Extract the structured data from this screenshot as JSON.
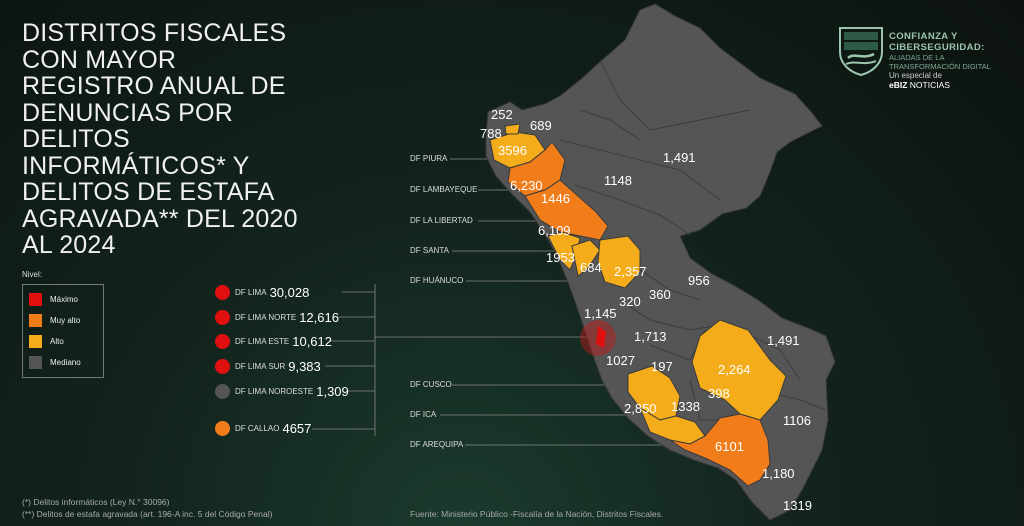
{
  "title": "DISTRITOS FISCALES CON MAYOR REGISTRO ANUAL DE DENUNCIAS POR DELITOS INFORMÁTICOS* Y DELITOS DE ESTAFA AGRAVADA** DEL 2020 AL 2024",
  "legend": {
    "title": "Nivel:",
    "items": [
      {
        "label": "Máximo",
        "color": "#e01010"
      },
      {
        "label": "Muy alto",
        "color": "#f07d1a"
      },
      {
        "label": "Alto",
        "color": "#f5ac1a"
      },
      {
        "label": "Mediano",
        "color": "#555555"
      }
    ]
  },
  "district_labels": [
    "DF PIURA",
    "DF LAMBAYEQUE",
    "DF  LA LIBERTAD",
    "DF SANTA",
    "DF  HUÁNUCO",
    "DF CUSCO",
    "DF ICA",
    "DF AREQUIPA"
  ],
  "lima": [
    {
      "name": "DF LIMA",
      "value": "30,028",
      "color": "#e01010"
    },
    {
      "name": "DF LIMA NORTE",
      "value": "12,616",
      "color": "#e01010"
    },
    {
      "name": "DF LIMA ESTE",
      "value": "10,612",
      "color": "#e01010"
    },
    {
      "name": "DF LIMA SUR",
      "value": "9,383",
      "color": "#e01010"
    },
    {
      "name": "DF LIMA NOROESTE",
      "value": "1,309",
      "color": "#555555"
    },
    {
      "name": "DF CALLAO",
      "value": "4657",
      "color": "#f07d1a"
    }
  ],
  "map_values": [
    "252",
    "788",
    "689",
    "3596",
    "1,491",
    "6,230",
    "1148",
    "1446",
    "6,109",
    "1953",
    "684",
    "2,357",
    "956",
    "320",
    "360",
    "1,145",
    "1,713",
    "1,491",
    "1027",
    "197",
    "2,264",
    "398",
    "2,850",
    "1338",
    "1106",
    "6101",
    "1,180",
    "1319"
  ],
  "logo": {
    "line1": "CONFIANZA Y",
    "line2": "CIBERSEGURIDAD:",
    "line3": "ALIADAS DE LA",
    "line4": "TRANSFORMACIÓN DIGITAL",
    "line5": "Un especial de",
    "brand": "eBIZ",
    "brand_suffix": " NOTICIAS"
  },
  "footnotes": {
    "note1": "(*) Delitos informáticos (Ley N.° 30096)",
    "note2": "(**) Delitos de estafa agravada (art. 196-A inc. 5 del Código Penal)",
    "source": "Fuente: Ministerio Público -Fiscalía de la Nación, Distritos Fiscales."
  }
}
